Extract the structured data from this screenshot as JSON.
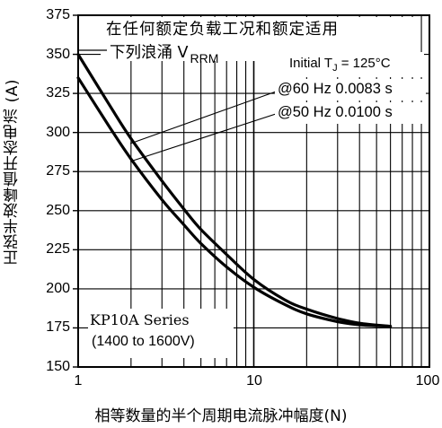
{
  "chart_data": {
    "type": "line",
    "xscale": "log",
    "xlim": [
      1,
      100
    ],
    "ylim": [
      150,
      375
    ],
    "grid": true,
    "x_ticks": [
      "1",
      "10",
      "100"
    ],
    "y_ticks": [
      "375",
      "350",
      "325",
      "300",
      "275",
      "250",
      "225",
      "200",
      "175",
      "150"
    ],
    "xlabel": "相等数量的半个周期电流脉冲幅度(N)",
    "ylabel": "正弦半波峰值开态电流 (A)",
    "series": [
      {
        "name": "@60 Hz 0.0083 s",
        "x": [
          1,
          1.5,
          2,
          3,
          4,
          5,
          7,
          10,
          15,
          20,
          30,
          40,
          60
        ],
        "y": [
          350,
          318,
          296,
          269,
          251,
          238,
          222,
          206,
          193,
          187,
          181,
          178,
          176
        ]
      },
      {
        "name": "@50 Hz 0.0100 s",
        "x": [
          1,
          1.5,
          2,
          3,
          4,
          5,
          7,
          10,
          15,
          20,
          30,
          40,
          60
        ],
        "y": [
          335,
          304,
          283,
          257,
          241,
          229,
          214,
          201,
          190,
          184,
          179,
          177,
          176
        ]
      }
    ],
    "annotations": {
      "header_line1": "在任何额定负载工况和额定适用",
      "header_line2": "下列浪涌 V",
      "header_sub": "RRM",
      "initial_tj": "Initial T",
      "tj_sub": "J",
      "tj_value": " = 125°C",
      "label_60hz": "@60 Hz 0.0083 s",
      "label_50hz": "@50 Hz 0.0100 s",
      "series_name": "KP10A Series",
      "voltage_range": "(1400 to 1600V)"
    }
  }
}
